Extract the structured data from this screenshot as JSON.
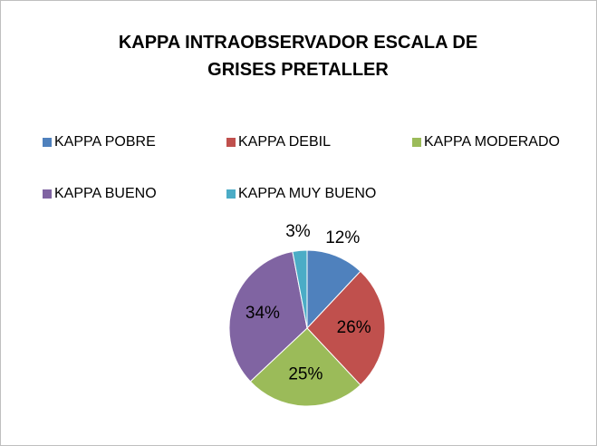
{
  "chart_data": {
    "type": "pie",
    "title": "KAPPA INTRAOBSERVADOR ESCALA DE GRISES PRETALLER",
    "categories": [
      "KAPPA POBRE",
      "KAPPA DEBIL",
      "KAPPA MODERADO",
      "KAPPA BUENO",
      "KAPPA MUY BUENO"
    ],
    "values": [
      12,
      26,
      25,
      34,
      3
    ],
    "value_labels": [
      "12%",
      "26%",
      "25%",
      "34%",
      "3%"
    ],
    "colors": [
      "#4f81bd",
      "#c0504d",
      "#9bbb59",
      "#8064a2",
      "#4bacc6"
    ],
    "legend": "top"
  }
}
